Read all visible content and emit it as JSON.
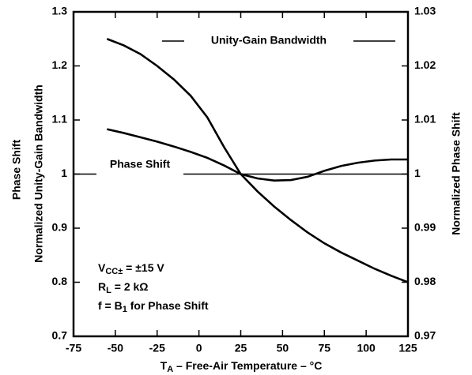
{
  "chart_data": {
    "type": "line",
    "outer_axis_label": "Phase Shift",
    "ylabel": "Normalized Unity-Gain Bandwidth",
    "y2label": "Normalized Phase Shift",
    "xlabel": {
      "main": "T",
      "sub": "A",
      "rest": " – Free-Air Temperature – °C"
    },
    "x": [
      -55,
      -45,
      -35,
      -25,
      -15,
      -5,
      5,
      15,
      25,
      35,
      45,
      55,
      65,
      75,
      85,
      95,
      105,
      115,
      125
    ],
    "series": [
      {
        "name": "Unity-Gain Bandwidth",
        "color": "#000000",
        "axis": "y",
        "values": [
          1.25,
          1.238,
          1.222,
          1.2,
          1.175,
          1.145,
          1.105,
          1.05,
          1.0,
          0.968,
          0.94,
          0.915,
          0.892,
          0.872,
          0.855,
          0.84,
          0.825,
          0.812,
          0.8
        ]
      },
      {
        "name": "Phase Shift",
        "color": "#000000",
        "axis": "y2",
        "values": [
          1.0083,
          1.0076,
          1.0068,
          1.006,
          1.0051,
          1.0041,
          1.003,
          1.0016,
          1.0,
          0.9992,
          0.9988,
          0.9989,
          0.9995,
          1.0006,
          1.0015,
          1.0021,
          1.0025,
          1.0027,
          1.0027
        ]
      }
    ],
    "xlim": [
      -75,
      125
    ],
    "xticks": [
      -75,
      -50,
      -25,
      0,
      25,
      50,
      75,
      100,
      125
    ],
    "ylim": [
      0.7,
      1.3
    ],
    "yticks": [
      0.7,
      0.8,
      0.9,
      1,
      1.1,
      1.2,
      1.3
    ],
    "y2lim": [
      0.97,
      1.03
    ],
    "y2ticks": [
      0.97,
      0.98,
      0.99,
      1,
      1.01,
      1.02,
      1.03
    ],
    "reference_line": 1,
    "grid": false,
    "conditions": [
      {
        "main": "V",
        "sub": "CC±",
        "rest": " = ±15 V"
      },
      {
        "main": "R",
        "sub": "L",
        "rest": " = 2 kΩ"
      },
      {
        "main": "f = B",
        "sub": "1",
        "rest": " for Phase Shift"
      }
    ]
  }
}
